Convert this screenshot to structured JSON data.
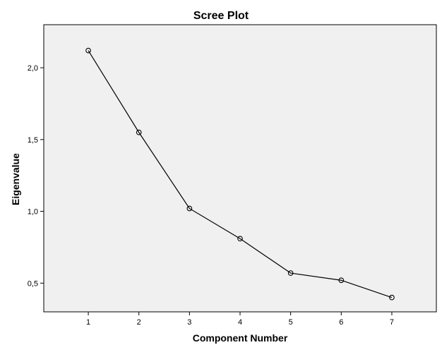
{
  "colors": {
    "plot_background": "#f0f0f0",
    "axis": "#000000",
    "series_line": "#000000",
    "marker_stroke": "#000000"
  },
  "chart_data": {
    "type": "line",
    "title": "Scree Plot",
    "xlabel": "Component Number",
    "ylabel": "Eigenvalue",
    "x": [
      1,
      2,
      3,
      4,
      5,
      6,
      7
    ],
    "x_tick_labels": [
      "1",
      "2",
      "3",
      "4",
      "5",
      "6",
      "7"
    ],
    "xlim": [
      0.12,
      7.88
    ],
    "series": [
      {
        "values": [
          2.12,
          1.55,
          1.02,
          0.81,
          0.57,
          0.52,
          0.4
        ],
        "marker": "open-circle"
      }
    ],
    "ylim": [
      0.3,
      2.3
    ],
    "y_ticks": [
      0.5,
      1.0,
      1.5,
      2.0
    ],
    "y_tick_labels": [
      "0,5",
      "1,0",
      "1,5",
      "2,0"
    ],
    "grid": false,
    "legend": "none"
  }
}
